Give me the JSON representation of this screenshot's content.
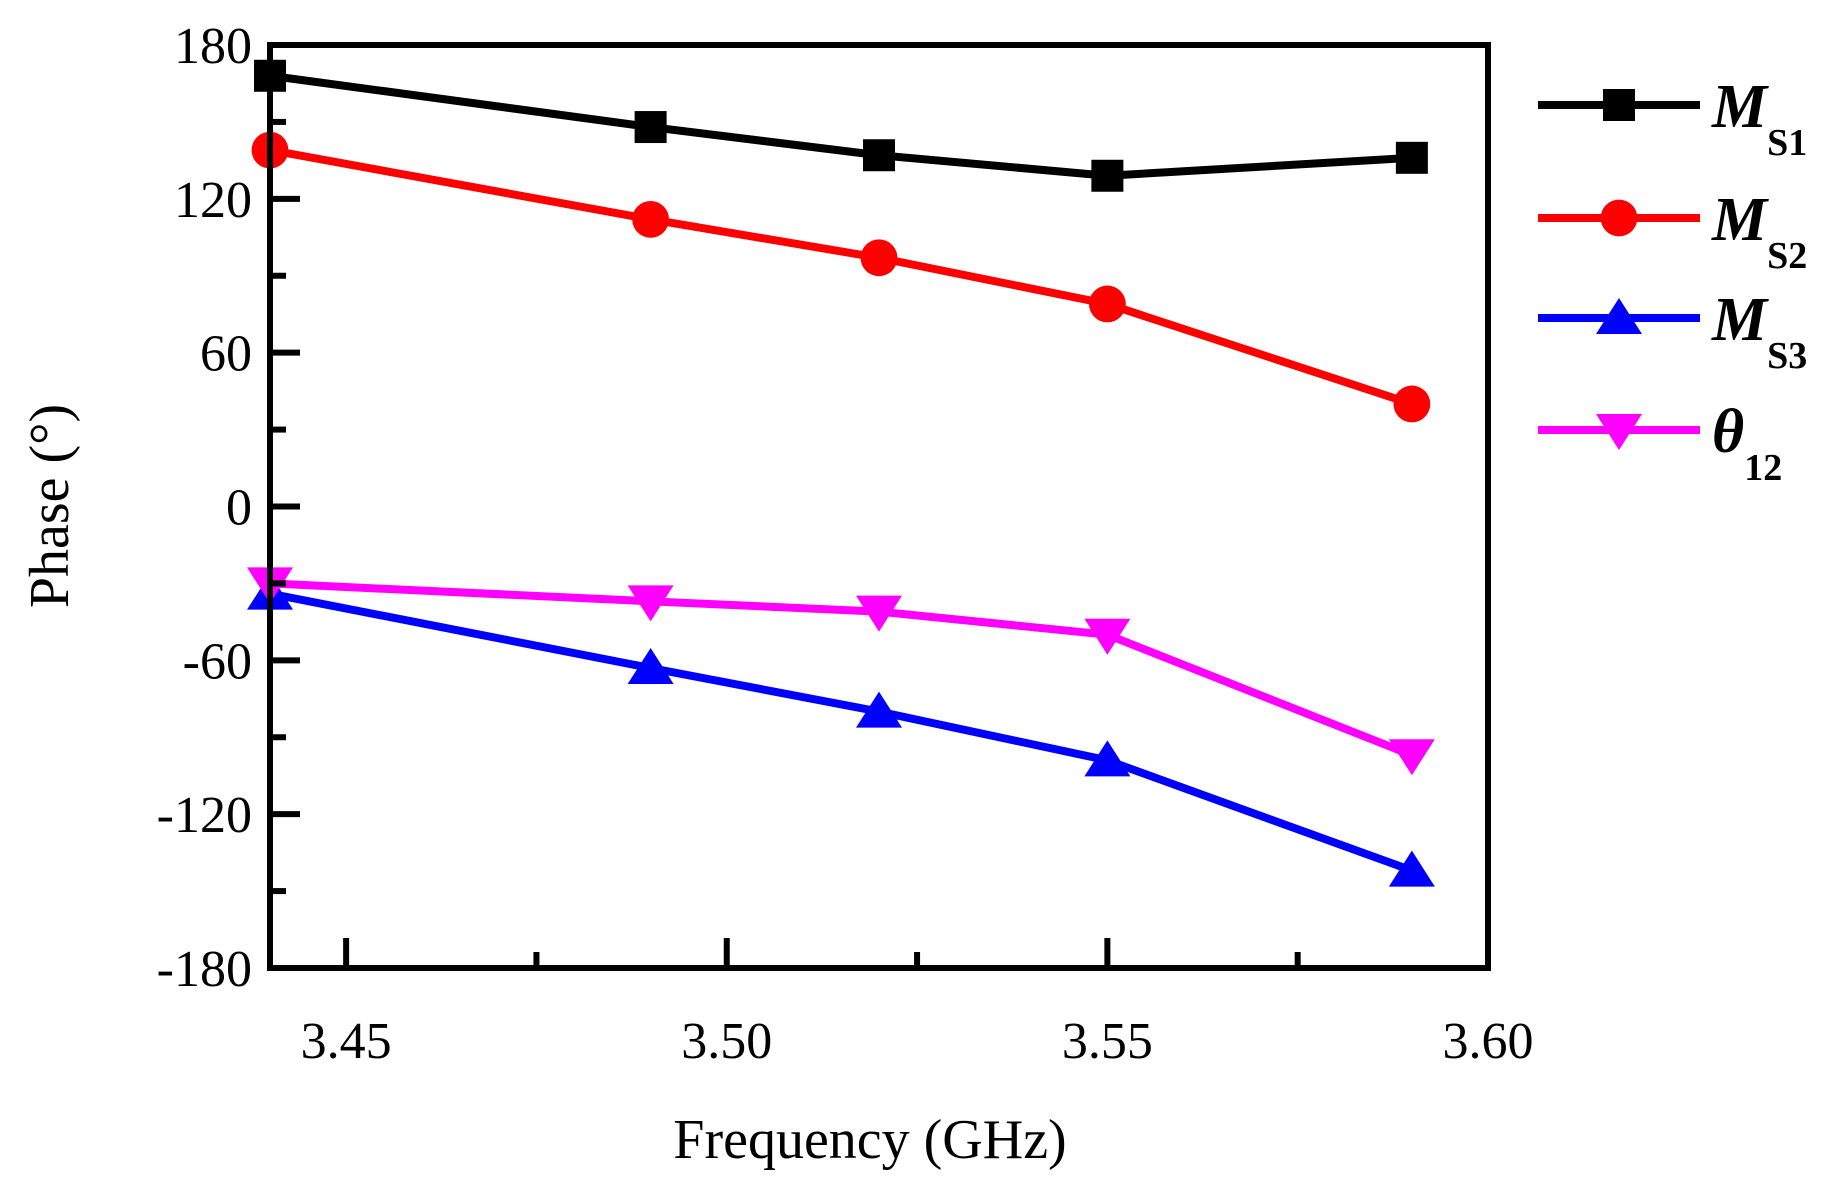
{
  "chart_data": {
    "type": "line",
    "title": "",
    "xlabel": "Frequency (GHz)",
    "ylabel": "Phase (°)",
    "xlim": [
      3.44,
      3.6
    ],
    "ylim": [
      -180,
      180
    ],
    "x_ticks": [
      3.45,
      3.5,
      3.55,
      3.6
    ],
    "x_tick_labels": [
      "3.45",
      "3.50",
      "3.55",
      "3.60"
    ],
    "y_ticks": [
      180,
      120,
      60,
      0,
      -60,
      -120,
      -180
    ],
    "y_tick_labels": [
      "180",
      "120",
      "60",
      "0",
      "-60",
      "-120",
      "-180"
    ],
    "x": [
      3.44,
      3.49,
      3.52,
      3.55,
      3.59
    ],
    "series": [
      {
        "name": "M",
        "subscript": "S1",
        "color": "#000000",
        "marker": "square",
        "values": [
          168,
          148,
          137,
          129,
          136
        ]
      },
      {
        "name": "M",
        "subscript": "S2",
        "color": "#ff0000",
        "marker": "circle",
        "values": [
          139,
          112,
          97,
          79,
          40
        ]
      },
      {
        "name": "M",
        "subscript": "S3",
        "color": "#0000ff",
        "marker": "triangle-up",
        "values": [
          -34,
          -63,
          -80,
          -99,
          -142
        ]
      },
      {
        "name": "θ",
        "subscript": "12",
        "color": "#ff00ff",
        "marker": "triangle-down",
        "values": [
          -30,
          -37,
          -41,
          -50,
          -97
        ]
      }
    ],
    "grid": false,
    "legend_position": "right"
  }
}
